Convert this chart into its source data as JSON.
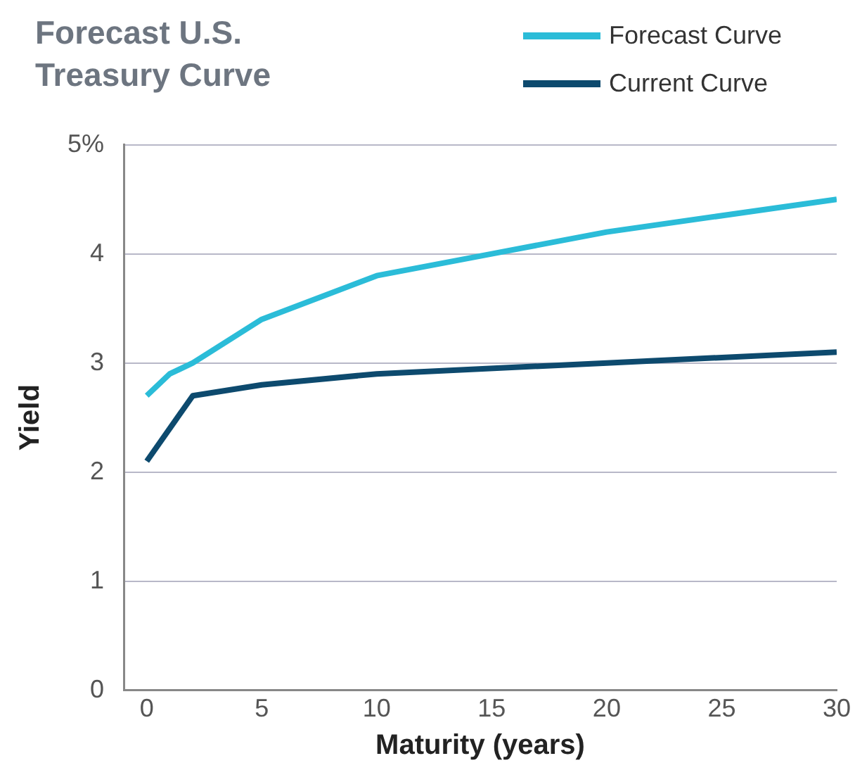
{
  "chart_data": {
    "type": "line",
    "title": "Forecast U.S. Treasury Curve",
    "xlabel": "Maturity (years)",
    "ylabel": "Yield",
    "xlim": [
      -1,
      30
    ],
    "xticks": [
      0,
      5,
      10,
      15,
      20,
      25,
      30
    ],
    "ylim": [
      0,
      5
    ],
    "yticks": [
      0,
      1,
      2,
      3,
      4,
      {
        "value": 5,
        "label": "5%"
      }
    ],
    "grid": "y",
    "legend": "top right",
    "marker": "none",
    "line_style": "solid",
    "series": [
      {
        "name": "Forecast Curve",
        "color": "#2bbcd8",
        "x": [
          0,
          1,
          2,
          5,
          10,
          15,
          20,
          30
        ],
        "values": [
          2.7,
          2.9,
          3.0,
          3.4,
          3.8,
          4.0,
          4.2,
          4.5
        ]
      },
      {
        "name": "Current Curve",
        "color": "#0d4a6e",
        "x": [
          0,
          2,
          5,
          10,
          20,
          30
        ],
        "values": [
          2.1,
          2.7,
          2.8,
          2.9,
          3.0,
          3.1
        ]
      }
    ]
  }
}
